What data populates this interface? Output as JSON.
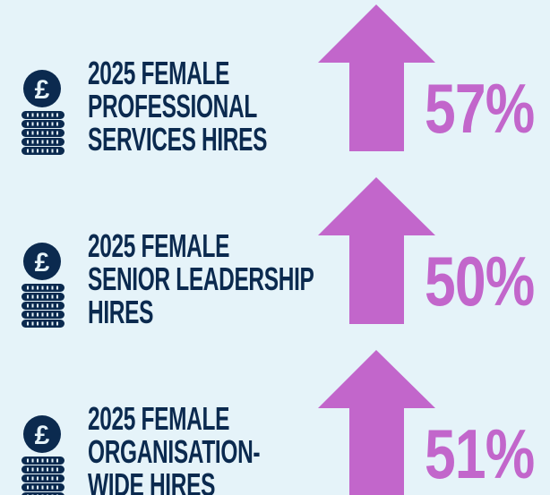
{
  "items": [
    {
      "label": [
        "2025 FEMALE",
        "PROFESSIONAL",
        "SERVICES HIRES"
      ],
      "value": "57%"
    },
    {
      "label": [
        "2025 FEMALE",
        "SENIOR LEADERSHIP",
        "HIRES"
      ],
      "value": "50%"
    },
    {
      "label": [
        "2025 FEMALE",
        "ORGANISATION-",
        "WIDE HIRES"
      ],
      "value": "51%"
    }
  ]
}
